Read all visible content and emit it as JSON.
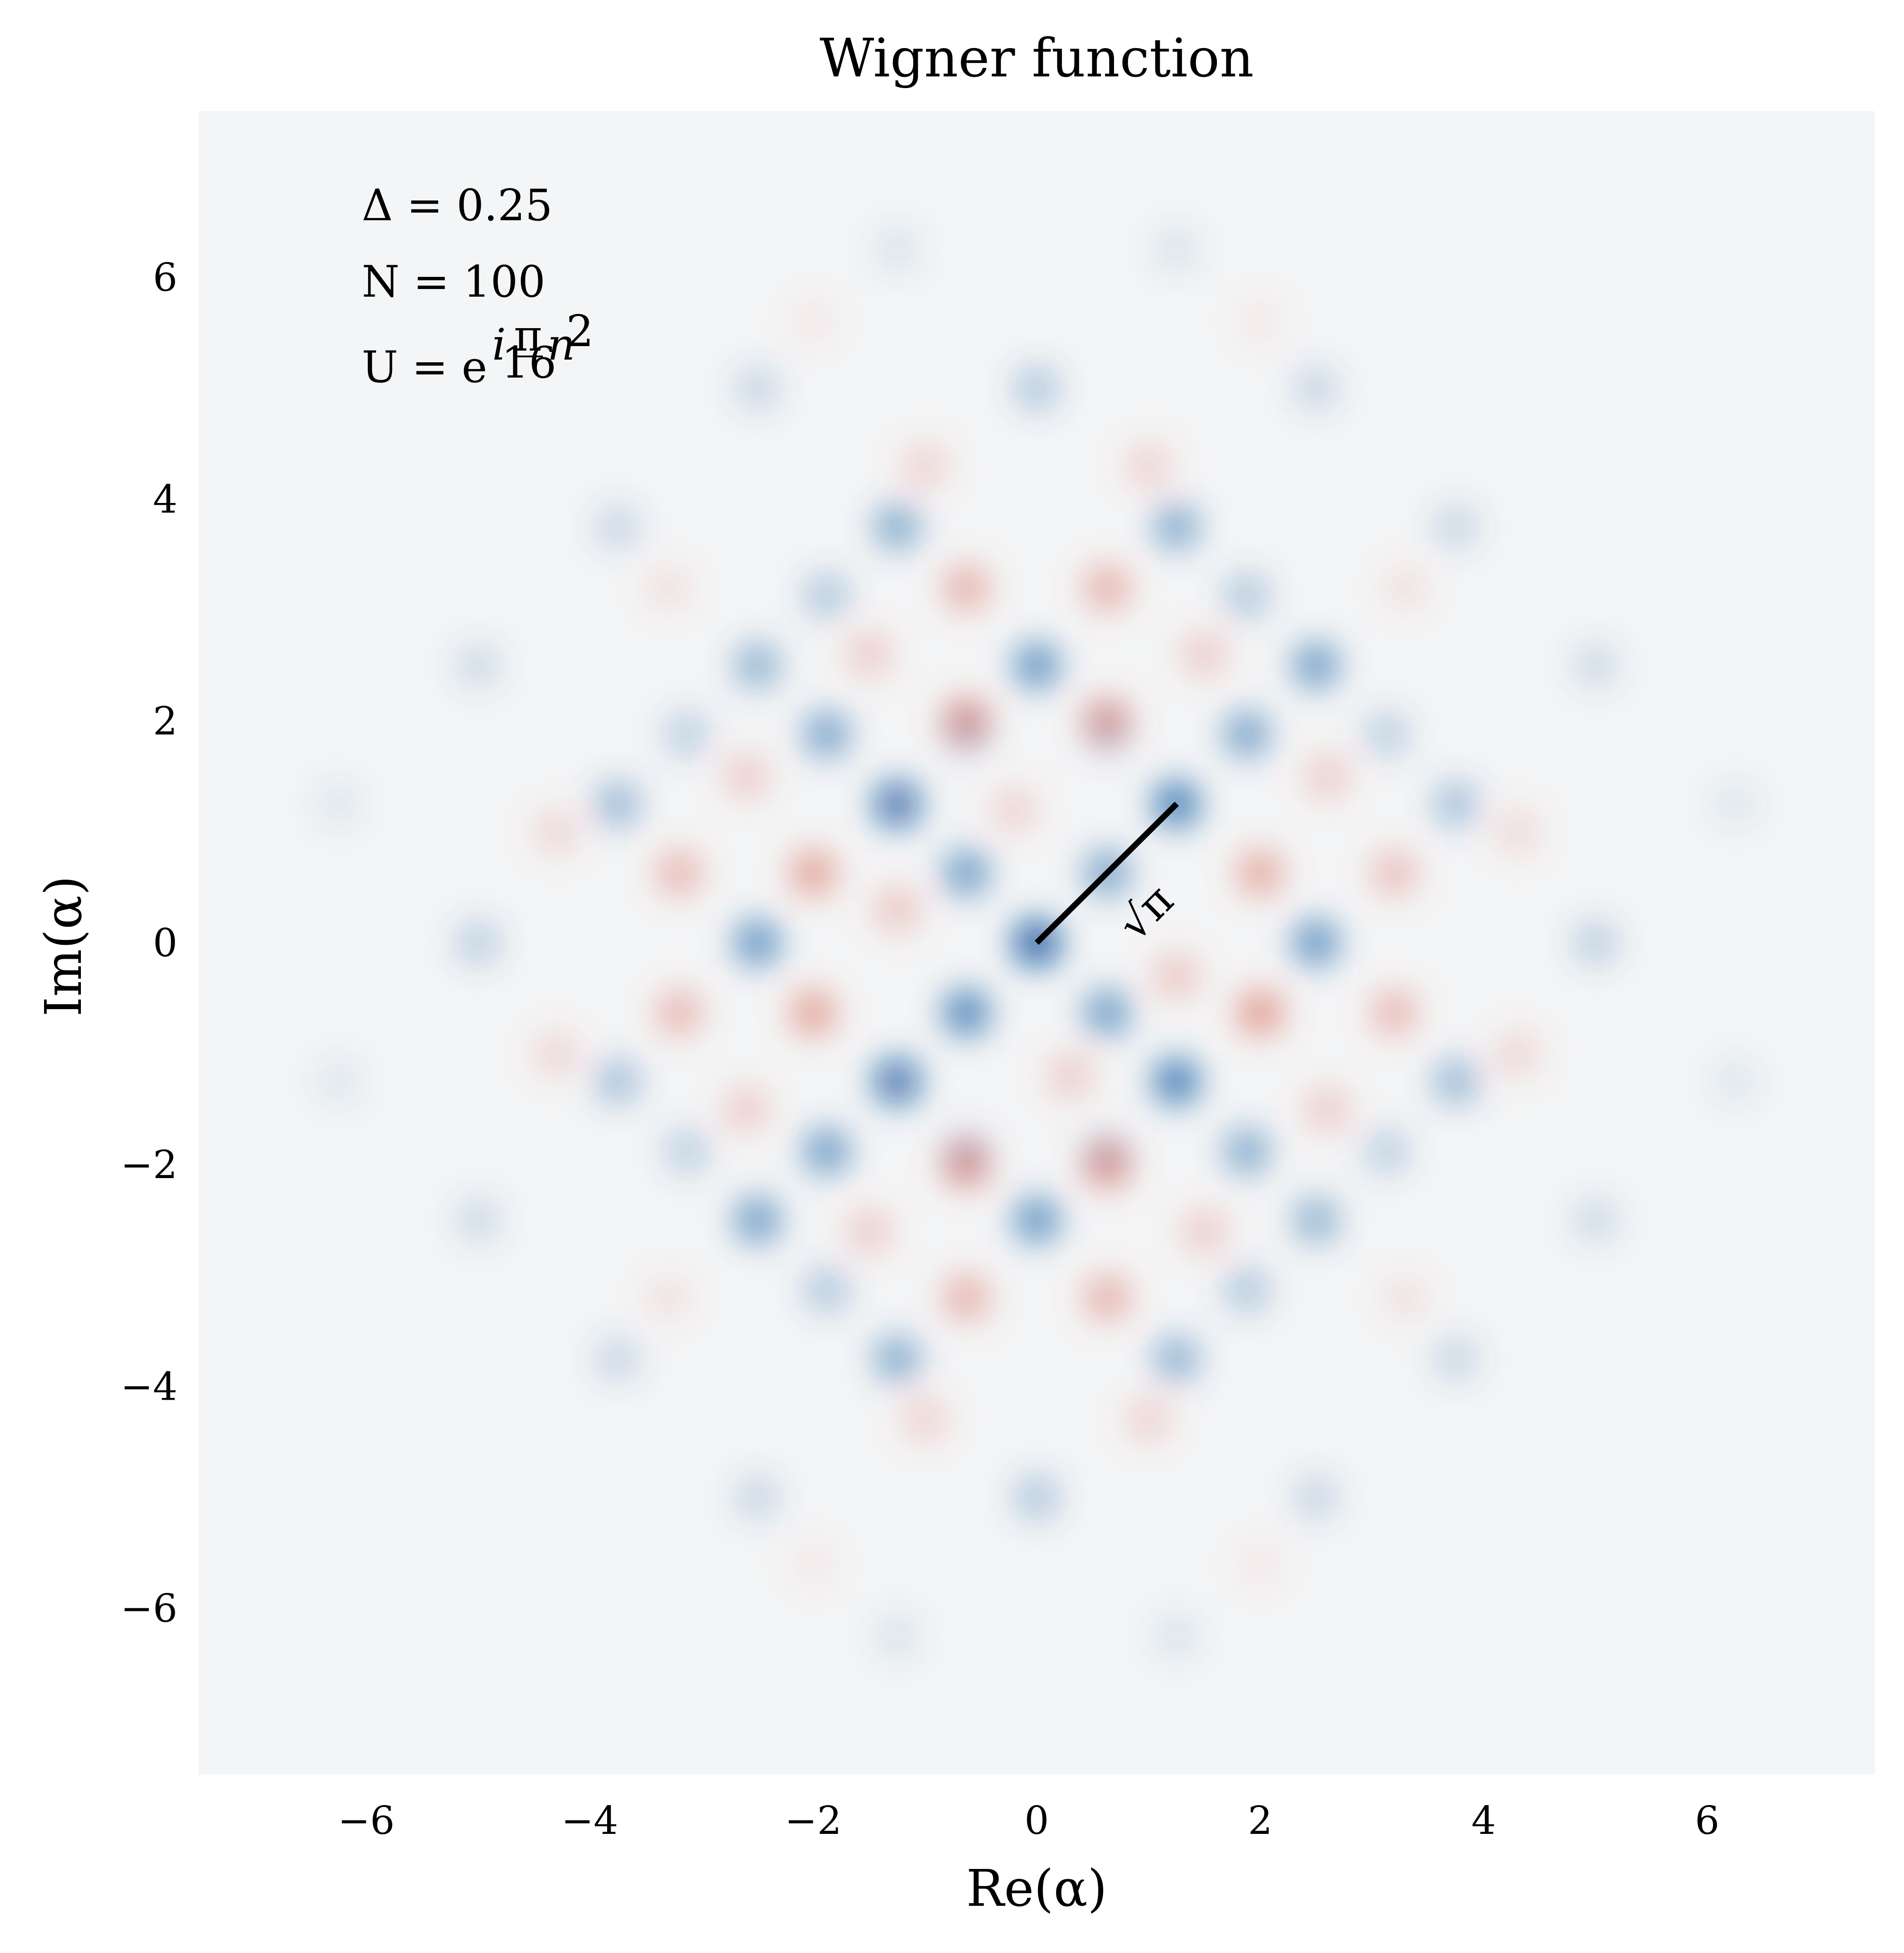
{
  "chart_data": {
    "type": "heatmap",
    "title": "Wigner function",
    "xlabel": "Re(α)",
    "ylabel": "Im(α)",
    "xlim": [
      -7.5,
      7.5
    ],
    "ylim": [
      -7.5,
      7.5
    ],
    "xticks": [
      -6,
      -4,
      -2,
      0,
      2,
      4,
      6
    ],
    "yticks": [
      -6,
      -4,
      -2,
      0,
      2,
      4,
      6
    ],
    "xtick_labels": [
      "−6",
      "−4",
      "−2",
      "0",
      "2",
      "4",
      "6"
    ],
    "ytick_labels": [
      "−6",
      "−4",
      "−2",
      "0",
      "2",
      "4",
      "6"
    ],
    "colormap": "RdBu (blue = positive, red = negative), centered at 0 (near-white)",
    "colors": {
      "positive": "#08519c",
      "negative": "#d6604d",
      "zero": "#f4f5f6"
    },
    "grid": false,
    "annotations": {
      "delta": "Δ = 0.25",
      "n": "N = 100",
      "unitary_prefix": "U = e",
      "unitary_exp_i": "i",
      "unitary_frac_num": "π",
      "unitary_frac_den": "16",
      "unitary_exp_n": "n",
      "unitary_exp_power": "2"
    },
    "line_annotation": {
      "label": "√π",
      "from": [
        0,
        0
      ],
      "to": [
        1.2533,
        1.2533
      ]
    },
    "grid_spacing": 0.6267,
    "peaks_positive": [
      [
        0,
        0,
        1.0
      ],
      [
        0.63,
        0.63,
        0.55
      ],
      [
        1.25,
        1.25,
        0.8
      ],
      [
        -0.63,
        -0.63,
        0.75
      ],
      [
        -1.25,
        -1.25,
        0.85
      ],
      [
        -1.88,
        -1.88,
        0.6
      ],
      [
        -2.5,
        -2.5,
        0.6
      ],
      [
        1.88,
        1.88,
        0.55
      ],
      [
        2.5,
        2.5,
        0.6
      ],
      [
        -1.25,
        1.25,
        0.85
      ],
      [
        1.25,
        -1.25,
        0.8
      ],
      [
        -0.63,
        0.63,
        0.6
      ],
      [
        0.63,
        -0.63,
        0.6
      ],
      [
        -2.5,
        0,
        0.65
      ],
      [
        2.5,
        0,
        0.65
      ],
      [
        0,
        2.5,
        0.65
      ],
      [
        0,
        -2.5,
        0.65
      ],
      [
        -1.88,
        1.88,
        0.55
      ],
      [
        1.88,
        -1.88,
        0.5
      ],
      [
        -2.5,
        2.5,
        0.45
      ],
      [
        2.5,
        -2.5,
        0.45
      ],
      [
        -1.25,
        3.75,
        0.5
      ],
      [
        1.25,
        3.75,
        0.5
      ],
      [
        -1.25,
        -3.75,
        0.5
      ],
      [
        1.25,
        -3.75,
        0.45
      ],
      [
        -3.75,
        1.25,
        0.4
      ],
      [
        3.75,
        1.25,
        0.35
      ],
      [
        -3.75,
        -1.25,
        0.35
      ],
      [
        3.75,
        -1.25,
        0.4
      ],
      [
        -1.88,
        3.13,
        0.3
      ],
      [
        1.88,
        3.13,
        0.3
      ],
      [
        -1.88,
        -3.13,
        0.3
      ],
      [
        1.88,
        -3.13,
        0.3
      ],
      [
        -3.13,
        1.88,
        0.25
      ],
      [
        3.13,
        1.88,
        0.25
      ],
      [
        -3.13,
        -1.88,
        0.25
      ],
      [
        3.13,
        -1.88,
        0.25
      ],
      [
        0,
        5.0,
        0.3
      ],
      [
        0,
        -5.0,
        0.3
      ],
      [
        -5.0,
        0,
        0.25
      ],
      [
        5.0,
        0,
        0.25
      ],
      [
        -3.75,
        3.75,
        0.2
      ],
      [
        3.75,
        3.75,
        0.2
      ],
      [
        -3.75,
        -3.75,
        0.2
      ],
      [
        3.75,
        -3.75,
        0.2
      ],
      [
        -2.5,
        5.0,
        0.2
      ],
      [
        2.5,
        5.0,
        0.2
      ],
      [
        -2.5,
        -5.0,
        0.2
      ],
      [
        2.5,
        -5.0,
        0.2
      ],
      [
        -5.0,
        2.5,
        0.18
      ],
      [
        5.0,
        2.5,
        0.18
      ],
      [
        -5.0,
        -2.5,
        0.18
      ],
      [
        5.0,
        -2.5,
        0.18
      ],
      [
        -0.63,
        1.88,
        0.2
      ],
      [
        0.63,
        1.88,
        0.18
      ],
      [
        -0.63,
        -1.88,
        0.2
      ],
      [
        0.63,
        -1.88,
        0.18
      ],
      [
        -1.25,
        6.25,
        0.12
      ],
      [
        1.25,
        6.25,
        0.12
      ],
      [
        -1.25,
        -6.25,
        0.12
      ],
      [
        1.25,
        -6.25,
        0.12
      ],
      [
        -6.25,
        1.25,
        0.1
      ],
      [
        6.25,
        1.25,
        0.1
      ],
      [
        -6.25,
        -1.25,
        0.1
      ],
      [
        6.25,
        -1.25,
        0.1
      ]
    ],
    "peaks_negative": [
      [
        -0.63,
        2.0,
        0.7
      ],
      [
        0.63,
        2.0,
        0.65
      ],
      [
        -0.63,
        -2.0,
        0.7
      ],
      [
        0.63,
        -2.0,
        0.7
      ],
      [
        -2.0,
        0.63,
        0.6
      ],
      [
        2.0,
        0.63,
        0.55
      ],
      [
        -2.0,
        -0.63,
        0.6
      ],
      [
        2.0,
        -0.63,
        0.65
      ],
      [
        -0.63,
        3.2,
        0.5
      ],
      [
        0.63,
        3.2,
        0.5
      ],
      [
        -0.63,
        -3.2,
        0.5
      ],
      [
        0.63,
        -3.2,
        0.5
      ],
      [
        -3.2,
        0.63,
        0.45
      ],
      [
        3.2,
        0.63,
        0.4
      ],
      [
        -3.2,
        -0.63,
        0.45
      ],
      [
        3.2,
        -0.63,
        0.45
      ],
      [
        -1.5,
        2.6,
        0.3
      ],
      [
        1.5,
        2.6,
        0.3
      ],
      [
        -1.5,
        -2.6,
        0.3
      ],
      [
        1.5,
        -2.6,
        0.3
      ],
      [
        -2.6,
        1.5,
        0.3
      ],
      [
        2.6,
        1.5,
        0.3
      ],
      [
        -2.6,
        -1.5,
        0.3
      ],
      [
        2.6,
        -1.5,
        0.3
      ],
      [
        -1.25,
        0.3,
        0.35
      ],
      [
        1.25,
        -0.3,
        0.35
      ],
      [
        -0.2,
        1.2,
        0.25
      ],
      [
        0.3,
        -1.2,
        0.3
      ],
      [
        -1.0,
        4.3,
        0.25
      ],
      [
        1.0,
        4.3,
        0.25
      ],
      [
        -1.0,
        -4.3,
        0.25
      ],
      [
        1.0,
        -4.3,
        0.25
      ],
      [
        -4.3,
        1.0,
        0.22
      ],
      [
        4.3,
        1.0,
        0.2
      ],
      [
        -4.3,
        -1.0,
        0.22
      ],
      [
        4.3,
        -1.0,
        0.22
      ],
      [
        -3.3,
        3.2,
        0.15
      ],
      [
        3.3,
        3.2,
        0.15
      ],
      [
        -3.3,
        -3.2,
        0.15
      ],
      [
        3.3,
        -3.2,
        0.15
      ],
      [
        -2.0,
        5.6,
        0.1
      ],
      [
        2.0,
        5.6,
        0.1
      ],
      [
        -2.0,
        -5.6,
        0.1
      ],
      [
        2.0,
        -5.6,
        0.1
      ]
    ]
  }
}
